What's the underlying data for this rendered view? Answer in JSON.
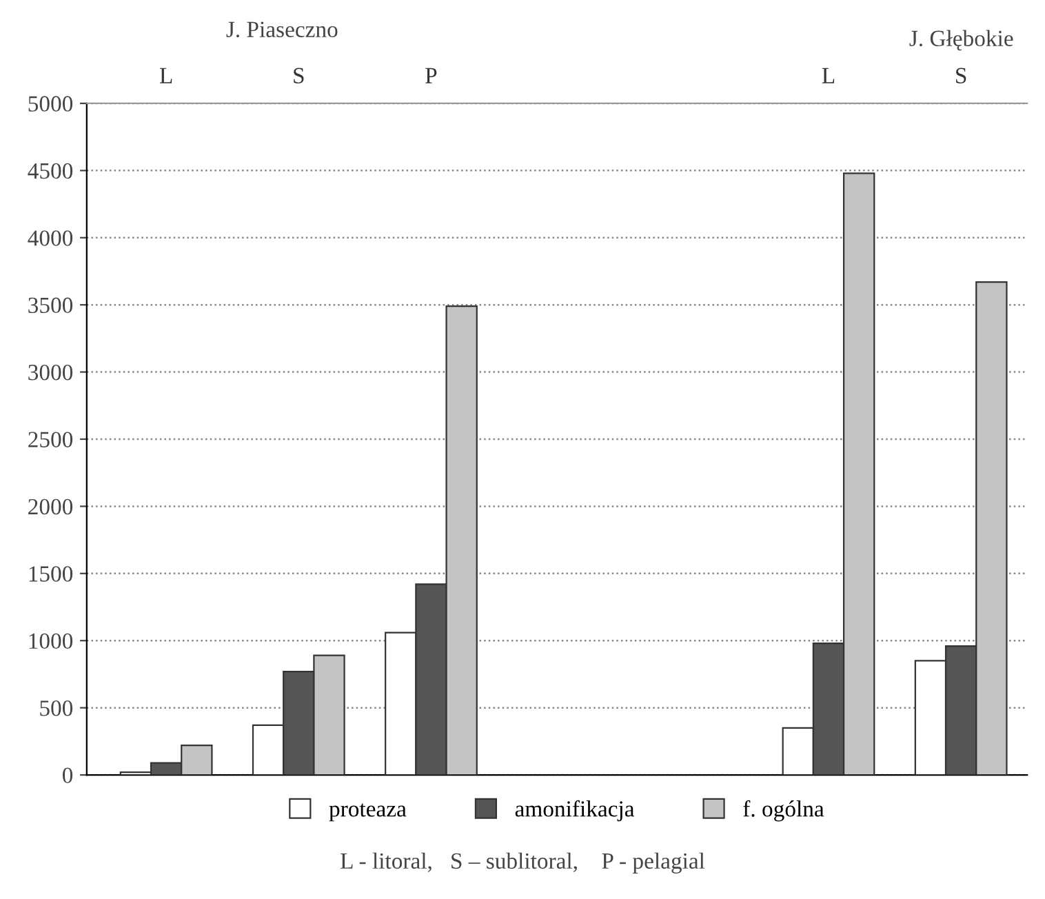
{
  "chart_data": {
    "type": "bar",
    "categories": [
      "L",
      "S",
      "P",
      null,
      null,
      "L",
      "S"
    ],
    "series": [
      {
        "name": "proteaza",
        "color": "#ffffff",
        "values": [
          20,
          370,
          1060,
          null,
          null,
          350,
          850
        ]
      },
      {
        "name": "amonifikacja",
        "color": "#555555",
        "values": [
          90,
          770,
          1420,
          null,
          null,
          980,
          960
        ]
      },
      {
        "name": "f. ogólna",
        "color": "#c4c4c4",
        "values": [
          220,
          890,
          3490,
          null,
          null,
          4480,
          3670
        ]
      }
    ],
    "ylim": [
      0,
      5000
    ],
    "yticks": [
      0,
      500,
      1000,
      1500,
      2000,
      2500,
      3000,
      3500,
      4000,
      4500,
      5000
    ],
    "grid": "y",
    "legend": "bottom",
    "annotations": [
      "J. Piaseczno",
      "J. Głębokie",
      "L - litoral,   S – sublitoral,    P - pelagial"
    ]
  }
}
